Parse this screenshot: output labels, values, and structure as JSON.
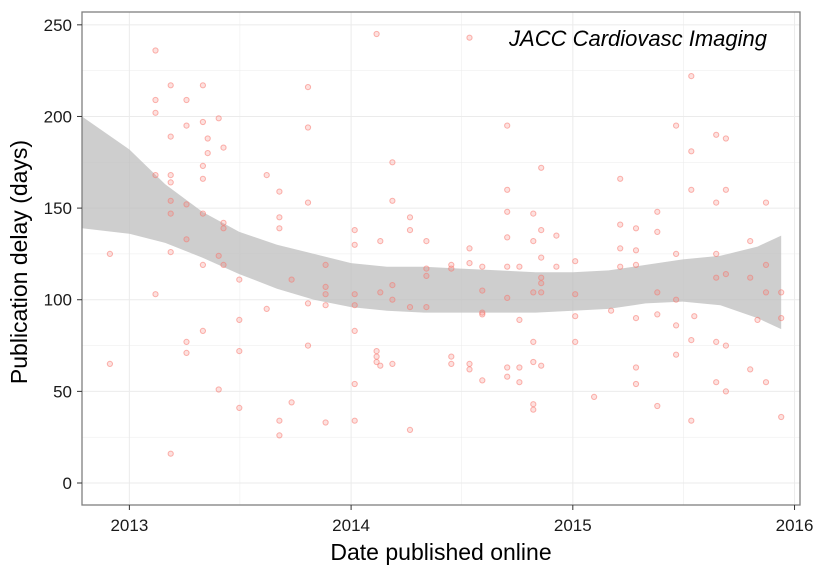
{
  "chart_data": {
    "type": "scatter",
    "title": "",
    "annotation": "JACC Cardiovasc Imaging",
    "xlabel": "Date published online",
    "ylabel": "Publication delay (days)",
    "xlim": [
      "2012-10-15",
      "2016-01-10"
    ],
    "ylim": [
      -12,
      257
    ],
    "x_ticks": [
      "2013",
      "2014",
      "2015",
      "2016"
    ],
    "y_ticks": [
      0,
      50,
      100,
      150,
      200,
      250
    ],
    "grid": true,
    "colors": {
      "points": "#f8766d",
      "band": "#bdbdbd",
      "grid": "#ebebeb",
      "border": "#7f7f7f"
    },
    "points": [
      [
        "2012-11-30",
        125
      ],
      [
        "2012-11-30",
        65
      ],
      [
        "2013-02-13",
        236
      ],
      [
        "2013-02-13",
        209
      ],
      [
        "2013-02-13",
        202
      ],
      [
        "2013-02-13",
        168
      ],
      [
        "2013-02-13",
        103
      ],
      [
        "2013-03-10",
        217
      ],
      [
        "2013-03-10",
        189
      ],
      [
        "2013-03-10",
        168
      ],
      [
        "2013-03-10",
        164
      ],
      [
        "2013-03-10",
        154
      ],
      [
        "2013-03-10",
        147
      ],
      [
        "2013-03-10",
        126
      ],
      [
        "2013-03-10",
        16
      ],
      [
        "2013-04-05",
        209
      ],
      [
        "2013-04-05",
        195
      ],
      [
        "2013-04-05",
        152
      ],
      [
        "2013-04-05",
        133
      ],
      [
        "2013-04-05",
        77
      ],
      [
        "2013-04-05",
        71
      ],
      [
        "2013-05-02",
        217
      ],
      [
        "2013-05-02",
        197
      ],
      [
        "2013-05-02",
        173
      ],
      [
        "2013-05-02",
        166
      ],
      [
        "2013-05-02",
        147
      ],
      [
        "2013-05-02",
        119
      ],
      [
        "2013-05-02",
        83
      ],
      [
        "2013-05-10",
        188
      ],
      [
        "2013-05-10",
        180
      ],
      [
        "2013-05-28",
        199
      ],
      [
        "2013-05-28",
        124
      ],
      [
        "2013-05-28",
        51
      ],
      [
        "2013-06-05",
        183
      ],
      [
        "2013-06-05",
        142
      ],
      [
        "2013-06-05",
        139
      ],
      [
        "2013-06-05",
        119
      ],
      [
        "2013-07-01",
        111
      ],
      [
        "2013-07-01",
        89
      ],
      [
        "2013-07-01",
        72
      ],
      [
        "2013-07-01",
        41
      ],
      [
        "2013-08-15",
        168
      ],
      [
        "2013-08-15",
        95
      ],
      [
        "2013-09-05",
        159
      ],
      [
        "2013-09-05",
        145
      ],
      [
        "2013-09-05",
        139
      ],
      [
        "2013-09-05",
        34
      ],
      [
        "2013-09-05",
        26
      ],
      [
        "2013-09-25",
        111
      ],
      [
        "2013-09-25",
        44
      ],
      [
        "2013-10-22",
        216
      ],
      [
        "2013-10-22",
        194
      ],
      [
        "2013-10-22",
        153
      ],
      [
        "2013-10-22",
        98
      ],
      [
        "2013-10-22",
        75
      ],
      [
        "2013-11-20",
        119
      ],
      [
        "2013-11-20",
        107
      ],
      [
        "2013-11-20",
        103
      ],
      [
        "2013-11-20",
        97
      ],
      [
        "2013-11-20",
        33
      ],
      [
        "2014-01-07",
        138
      ],
      [
        "2014-01-07",
        130
      ],
      [
        "2014-01-07",
        103
      ],
      [
        "2014-01-07",
        97
      ],
      [
        "2014-01-07",
        83
      ],
      [
        "2014-01-07",
        54
      ],
      [
        "2014-01-07",
        34
      ],
      [
        "2014-02-12",
        245
      ],
      [
        "2014-02-12",
        72
      ],
      [
        "2014-02-12",
        69
      ],
      [
        "2014-02-12",
        66
      ],
      [
        "2014-02-18",
        132
      ],
      [
        "2014-02-18",
        104
      ],
      [
        "2014-02-18",
        64
      ],
      [
        "2014-03-10",
        175
      ],
      [
        "2014-03-10",
        154
      ],
      [
        "2014-03-10",
        108
      ],
      [
        "2014-03-10",
        100
      ],
      [
        "2014-03-10",
        65
      ],
      [
        "2014-04-08",
        145
      ],
      [
        "2014-04-08",
        138
      ],
      [
        "2014-04-08",
        96
      ],
      [
        "2014-04-08",
        29
      ],
      [
        "2014-05-05",
        132
      ],
      [
        "2014-05-05",
        117
      ],
      [
        "2014-05-05",
        113
      ],
      [
        "2014-05-05",
        96
      ],
      [
        "2014-06-15",
        119
      ],
      [
        "2014-06-15",
        117
      ],
      [
        "2014-06-15",
        69
      ],
      [
        "2014-06-15",
        65
      ],
      [
        "2014-07-15",
        243
      ],
      [
        "2014-07-15",
        128
      ],
      [
        "2014-07-15",
        120
      ],
      [
        "2014-07-15",
        65
      ],
      [
        "2014-07-15",
        62
      ],
      [
        "2014-08-05",
        118
      ],
      [
        "2014-08-05",
        105
      ],
      [
        "2014-08-05",
        93
      ],
      [
        "2014-08-05",
        92
      ],
      [
        "2014-08-05",
        56
      ],
      [
        "2014-09-15",
        195
      ],
      [
        "2014-09-15",
        160
      ],
      [
        "2014-09-15",
        148
      ],
      [
        "2014-09-15",
        134
      ],
      [
        "2014-09-15",
        118
      ],
      [
        "2014-09-15",
        101
      ],
      [
        "2014-09-15",
        63
      ],
      [
        "2014-09-15",
        58
      ],
      [
        "2014-10-05",
        118
      ],
      [
        "2014-10-05",
        89
      ],
      [
        "2014-10-05",
        63
      ],
      [
        "2014-10-05",
        55
      ],
      [
        "2014-10-28",
        147
      ],
      [
        "2014-10-28",
        132
      ],
      [
        "2014-10-28",
        104
      ],
      [
        "2014-10-28",
        77
      ],
      [
        "2014-10-28",
        66
      ],
      [
        "2014-10-28",
        43
      ],
      [
        "2014-10-28",
        40
      ],
      [
        "2014-11-10",
        172
      ],
      [
        "2014-11-10",
        138
      ],
      [
        "2014-11-10",
        123
      ],
      [
        "2014-11-10",
        112
      ],
      [
        "2014-11-10",
        109
      ],
      [
        "2014-11-10",
        104
      ],
      [
        "2014-11-10",
        64
      ],
      [
        "2014-12-05",
        135
      ],
      [
        "2014-12-05",
        118
      ],
      [
        "2015-01-05",
        121
      ],
      [
        "2015-01-05",
        103
      ],
      [
        "2015-01-05",
        91
      ],
      [
        "2015-01-05",
        77
      ],
      [
        "2015-02-05",
        47
      ],
      [
        "2015-03-05",
        94
      ],
      [
        "2015-03-20",
        166
      ],
      [
        "2015-03-20",
        141
      ],
      [
        "2015-03-20",
        128
      ],
      [
        "2015-03-20",
        118
      ],
      [
        "2015-04-15",
        139
      ],
      [
        "2015-04-15",
        127
      ],
      [
        "2015-04-15",
        119
      ],
      [
        "2015-04-15",
        90
      ],
      [
        "2015-04-15",
        63
      ],
      [
        "2015-04-15",
        54
      ],
      [
        "2015-05-20",
        148
      ],
      [
        "2015-05-20",
        137
      ],
      [
        "2015-05-20",
        104
      ],
      [
        "2015-05-20",
        92
      ],
      [
        "2015-05-20",
        42
      ],
      [
        "2015-06-20",
        195
      ],
      [
        "2015-06-20",
        125
      ],
      [
        "2015-06-20",
        100
      ],
      [
        "2015-06-20",
        86
      ],
      [
        "2015-06-20",
        70
      ],
      [
        "2015-07-15",
        222
      ],
      [
        "2015-07-15",
        181
      ],
      [
        "2015-07-15",
        160
      ],
      [
        "2015-07-15",
        78
      ],
      [
        "2015-07-15",
        34
      ],
      [
        "2015-07-20",
        91
      ],
      [
        "2015-08-25",
        190
      ],
      [
        "2015-08-25",
        153
      ],
      [
        "2015-08-25",
        125
      ],
      [
        "2015-08-25",
        112
      ],
      [
        "2015-08-25",
        77
      ],
      [
        "2015-08-25",
        55
      ],
      [
        "2015-09-10",
        188
      ],
      [
        "2015-09-10",
        160
      ],
      [
        "2015-09-10",
        114
      ],
      [
        "2015-09-10",
        75
      ],
      [
        "2015-09-10",
        50
      ],
      [
        "2015-10-20",
        132
      ],
      [
        "2015-10-20",
        112
      ],
      [
        "2015-10-20",
        62
      ],
      [
        "2015-11-01",
        89
      ],
      [
        "2015-11-15",
        153
      ],
      [
        "2015-11-15",
        119
      ],
      [
        "2015-11-15",
        104
      ],
      [
        "2015-11-15",
        55
      ],
      [
        "2015-12-10",
        104
      ],
      [
        "2015-12-10",
        90
      ],
      [
        "2015-12-10",
        36
      ]
    ],
    "confidence_band": {
      "x": [
        "2012-10-15",
        "2013-01-01",
        "2013-03-01",
        "2013-05-01",
        "2013-07-01",
        "2013-09-01",
        "2013-11-01",
        "2014-01-01",
        "2014-03-01",
        "2014-05-01",
        "2014-07-01",
        "2014-09-01",
        "2014-11-01",
        "2015-01-01",
        "2015-03-01",
        "2015-05-01",
        "2015-07-01",
        "2015-09-01",
        "2015-11-01",
        "2015-12-10"
      ],
      "upper": [
        200,
        182,
        163,
        148,
        137,
        130,
        125,
        120,
        118,
        118,
        117,
        116,
        115,
        115,
        116,
        119,
        122,
        124,
        129,
        135
      ],
      "lower": [
        139,
        136,
        131,
        123,
        114,
        106,
        100,
        96,
        94,
        93,
        93,
        93,
        93,
        94,
        95,
        98,
        99,
        97,
        90,
        84
      ]
    }
  }
}
